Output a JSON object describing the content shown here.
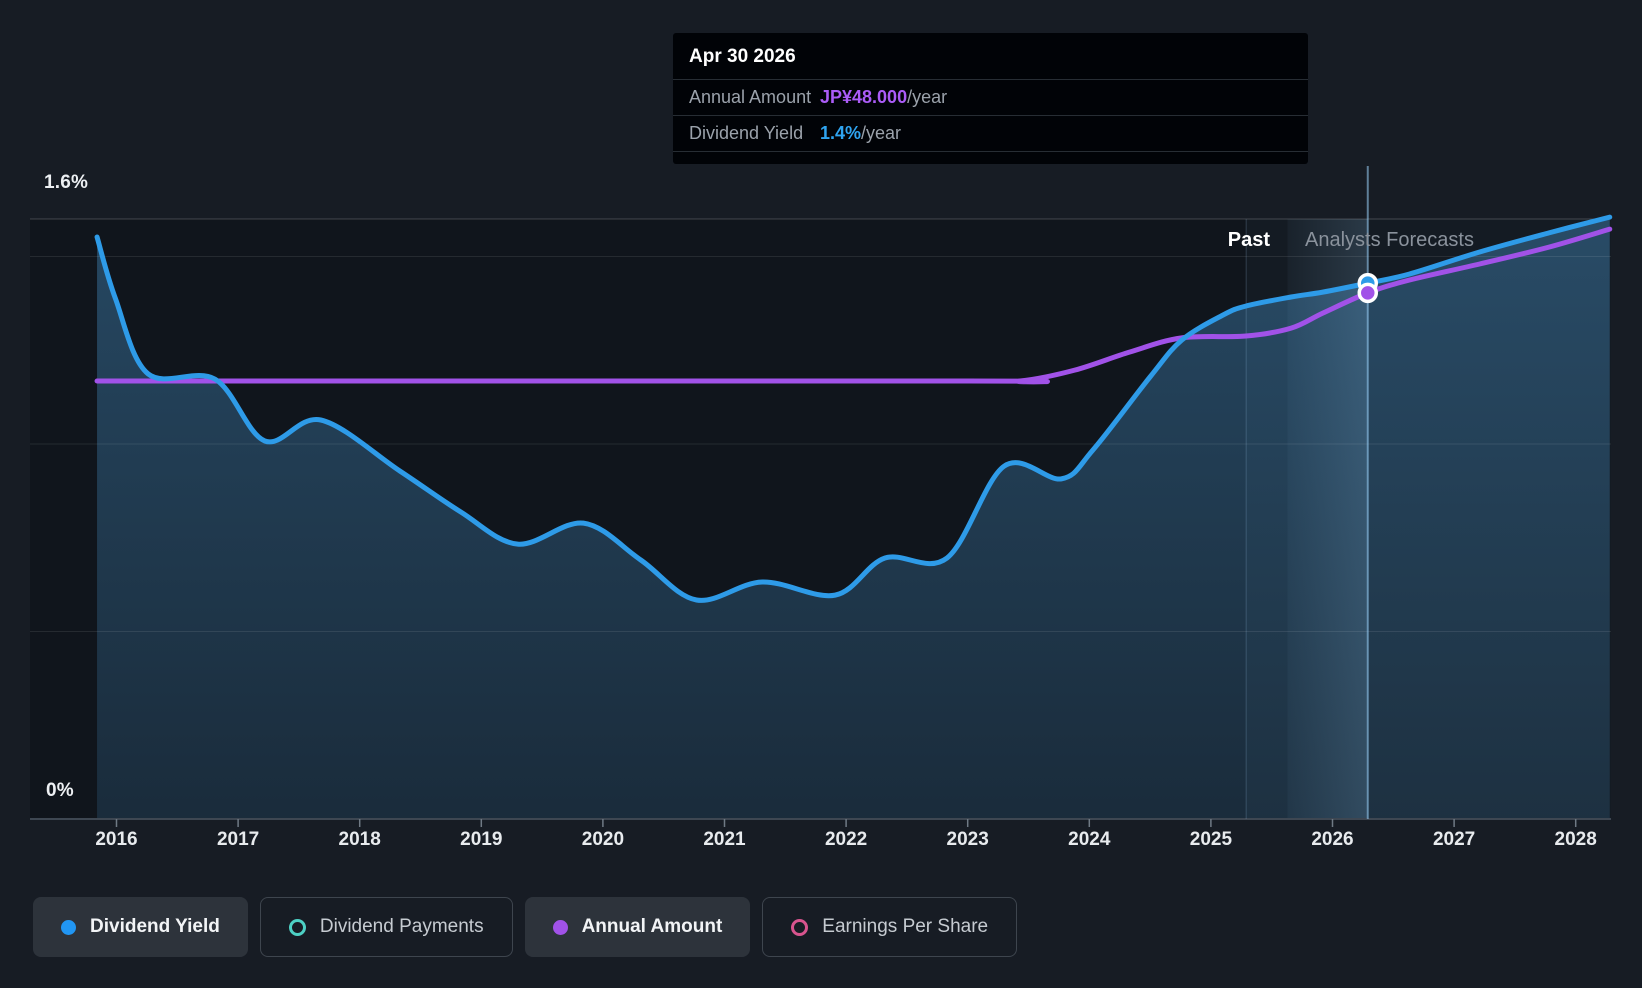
{
  "page": {
    "background": "#171C24"
  },
  "tooltip": {
    "date": "Apr 30 2026",
    "rows": [
      {
        "label": "Annual Amount",
        "value": "JP¥48.000",
        "suffix": "/year",
        "value_color": "#AB5CF7"
      },
      {
        "label": "Dividend Yield",
        "value": "1.4%",
        "suffix": "/year",
        "value_color": "#2FA4F0"
      }
    ]
  },
  "annotations": {
    "past": "Past",
    "forecast": "Analysts Forecasts"
  },
  "legend": [
    {
      "label": "Dividend Yield",
      "color": "#2196F3",
      "marker": "filled",
      "active": true
    },
    {
      "label": "Dividend Payments",
      "color": "#4DD0C4",
      "marker": "ring",
      "active": false
    },
    {
      "label": "Annual Amount",
      "color": "#A152E8",
      "marker": "filled",
      "active": true
    },
    {
      "label": "Earnings Per Share",
      "color": "#D8548E",
      "marker": "ring",
      "active": false
    }
  ],
  "chart_data": {
    "type": "line",
    "title": "Dividend yield history and forecast",
    "x_axis": {
      "min": 2015.75,
      "max": 2028.35,
      "ticks": [
        2016,
        2017,
        2018,
        2019,
        2020,
        2021,
        2022,
        2023,
        2024,
        2025,
        2026,
        2027,
        2028
      ]
    },
    "y_axis": {
      "min": 0,
      "max": 1.6,
      "unit": "%",
      "top_label": "1.6%",
      "bottom_label": "0%",
      "gridlines_pct": [
        0.5,
        1.0,
        1.5
      ]
    },
    "past_until_year": 2025.29,
    "hover_year": 2026.29,
    "hover_band_start_year": 2025.63,
    "series": [
      {
        "name": "Dividend Yield",
        "color": "#2E9BE8",
        "style": "area",
        "points": [
          [
            2015.84,
            1.552
          ],
          [
            2015.99,
            1.389
          ],
          [
            2016.26,
            1.187
          ],
          [
            2016.81,
            1.173
          ],
          [
            2017.22,
            1.008
          ],
          [
            2017.68,
            1.064
          ],
          [
            2018.33,
            0.928
          ],
          [
            2018.83,
            0.819
          ],
          [
            2019.3,
            0.733
          ],
          [
            2019.84,
            0.789
          ],
          [
            2020.31,
            0.691
          ],
          [
            2020.77,
            0.584
          ],
          [
            2021.31,
            0.632
          ],
          [
            2021.91,
            0.597
          ],
          [
            2022.32,
            0.696
          ],
          [
            2022.83,
            0.696
          ],
          [
            2023.3,
            0.941
          ],
          [
            2023.77,
            0.907
          ],
          [
            2024.03,
            0.984
          ],
          [
            2024.5,
            1.179
          ],
          [
            2024.76,
            1.277
          ],
          [
            2025.1,
            1.344
          ],
          [
            2025.29,
            1.368
          ],
          [
            2025.66,
            1.392
          ],
          [
            2025.92,
            1.405
          ],
          [
            2026.29,
            1.429
          ],
          [
            2026.63,
            1.453
          ],
          [
            2027.21,
            1.512
          ],
          [
            2027.78,
            1.563
          ],
          [
            2028.28,
            1.605
          ]
        ]
      },
      {
        "name": "Annual Amount",
        "color": "#A152E8",
        "style": "line",
        "points": [
          [
            2015.84,
            1.168
          ],
          [
            2023.0,
            1.168
          ],
          [
            2023.43,
            1.168
          ],
          [
            2023.88,
            1.197
          ],
          [
            2024.33,
            1.245
          ],
          [
            2024.76,
            1.283
          ],
          [
            2025.29,
            1.288
          ],
          [
            2025.66,
            1.309
          ],
          [
            2025.92,
            1.349
          ],
          [
            2026.29,
            1.403
          ],
          [
            2026.63,
            1.437
          ],
          [
            2027.21,
            1.48
          ],
          [
            2027.78,
            1.525
          ],
          [
            2028.28,
            1.573
          ]
        ]
      }
    ],
    "markers": [
      {
        "series": "Dividend Yield",
        "year": 2026.29,
        "pct": 1.429,
        "color": "#2E9BE8"
      },
      {
        "series": "Annual Amount",
        "year": 2026.29,
        "pct": 1.403,
        "color": "#A152E8"
      }
    ]
  }
}
